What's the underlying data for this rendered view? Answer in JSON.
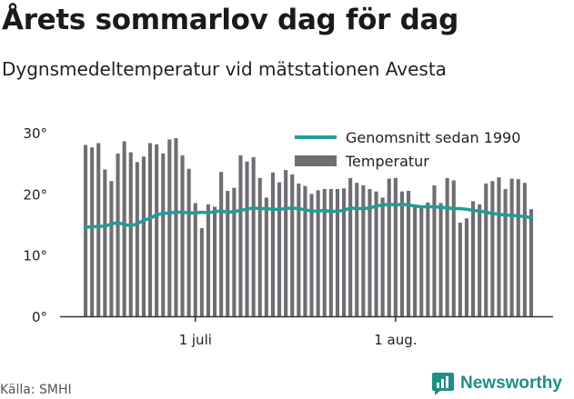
{
  "header": {
    "title": "Årets sommarlov dag för dag",
    "subtitle": "Dygnsmedeltemperatur vid mätstationen Avesta"
  },
  "footer": {
    "source": "Källa: SMHI",
    "logo_text": "Newsworthy"
  },
  "colors": {
    "bar": "#6e6e73",
    "line": "#1e9e96",
    "axis": "#333333",
    "logo": "#1f8f86"
  },
  "chart_data": {
    "type": "bar",
    "title": "Årets sommarlov dag för dag",
    "subtitle": "Dygnsmedeltemperatur vid mätstationen Avesta",
    "y_ticks": [
      "0°",
      "10°",
      "20°",
      "30°"
    ],
    "ylim": [
      0,
      30
    ],
    "x_ticks": [
      {
        "label": "1 juli",
        "index": 17
      },
      {
        "label": "1 aug.",
        "index": 48
      }
    ],
    "legend": {
      "placement": "top-right",
      "items": [
        {
          "label": "Genomsnitt sedan 1990",
          "kind": "line"
        },
        {
          "label": "Temperatur",
          "kind": "bar"
        }
      ]
    },
    "series": [
      {
        "name": "Temperatur",
        "kind": "bar",
        "values": [
          28.0,
          27.6,
          28.3,
          24.0,
          22.1,
          26.6,
          28.6,
          26.8,
          25.2,
          26.1,
          28.3,
          28.1,
          26.6,
          28.9,
          29.1,
          26.3,
          24.1,
          18.5,
          14.4,
          18.3,
          17.9,
          23.6,
          20.5,
          21.0,
          26.3,
          25.3,
          26.0,
          22.6,
          19.4,
          23.5,
          21.9,
          23.9,
          23.2,
          21.7,
          21.3,
          20.0,
          20.6,
          20.8,
          20.8,
          20.8,
          20.9,
          22.6,
          21.8,
          21.4,
          20.8,
          20.4,
          19.4,
          22.5,
          22.6,
          20.4,
          20.5,
          18.3,
          18.0,
          18.6,
          21.4,
          18.5,
          22.6,
          22.2,
          15.3,
          16.0,
          18.8,
          18.3,
          21.7,
          22.1,
          22.7,
          20.8,
          22.5,
          22.4,
          21.8,
          17.5
        ]
      },
      {
        "name": "Genomsnitt sedan 1990",
        "kind": "line",
        "values": [
          14.6,
          14.6,
          14.7,
          14.7,
          15.1,
          15.3,
          15.0,
          14.8,
          15.1,
          15.7,
          16.0,
          16.6,
          16.8,
          16.9,
          17.0,
          17.0,
          16.9,
          16.9,
          17.0,
          16.9,
          17.1,
          17.2,
          17.0,
          17.1,
          17.3,
          17.5,
          17.7,
          17.6,
          17.6,
          17.5,
          17.5,
          17.6,
          17.7,
          17.6,
          17.4,
          17.2,
          17.2,
          17.3,
          17.1,
          17.2,
          17.3,
          17.7,
          17.6,
          17.6,
          17.7,
          18.0,
          18.2,
          18.3,
          18.2,
          18.3,
          18.2,
          18.0,
          17.9,
          17.9,
          17.9,
          17.8,
          17.7,
          17.6,
          17.6,
          17.5,
          17.3,
          17.2,
          17.0,
          16.8,
          16.7,
          16.5,
          16.5,
          16.4,
          16.3,
          16.1,
          16.0
        ]
      }
    ]
  }
}
